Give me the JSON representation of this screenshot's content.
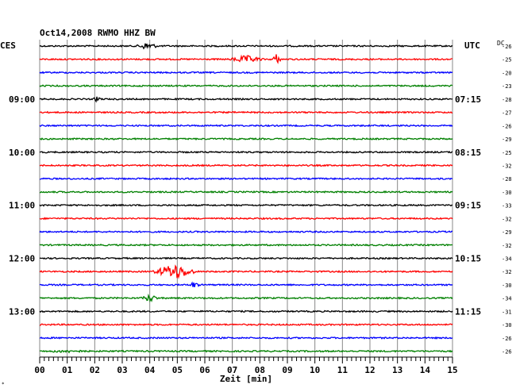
{
  "chart_data": {
    "type": "line",
    "title": "Oct14,2008  RWMO HHZ BW",
    "xlabel": "Zeit [min]",
    "xlim": [
      0,
      15
    ],
    "x_ticks": [
      "00",
      "01",
      "02",
      "03",
      "04",
      "05",
      "06",
      "07",
      "08",
      "09",
      "10",
      "11",
      "12",
      "13",
      "14",
      "15"
    ],
    "left_axis_label": "CES",
    "right_axis_label": "UTC",
    "dc_label": "DC",
    "left_hour_labels": [
      {
        "row": 4,
        "text": "09:00"
      },
      {
        "row": 8,
        "text": "10:00"
      },
      {
        "row": 12,
        "text": "11:00"
      },
      {
        "row": 16,
        "text": "12:00"
      },
      {
        "row": 20,
        "text": "13:00"
      }
    ],
    "right_hour_labels": [
      {
        "row": 4,
        "text": "07:15"
      },
      {
        "row": 8,
        "text": "08:15"
      },
      {
        "row": 12,
        "text": "09:15"
      },
      {
        "row": 16,
        "text": "10:15"
      },
      {
        "row": 20,
        "text": "11:15"
      }
    ],
    "traces": [
      {
        "color": "#000000",
        "dc": "-26"
      },
      {
        "color": "#ff0000",
        "dc": "-25"
      },
      {
        "color": "#0000ff",
        "dc": "-20"
      },
      {
        "color": "#008000",
        "dc": "-23"
      },
      {
        "color": "#000000",
        "dc": "-28"
      },
      {
        "color": "#ff0000",
        "dc": "-27"
      },
      {
        "color": "#0000ff",
        "dc": "-26"
      },
      {
        "color": "#008000",
        "dc": "-29"
      },
      {
        "color": "#000000",
        "dc": "-25"
      },
      {
        "color": "#ff0000",
        "dc": "-32"
      },
      {
        "color": "#0000ff",
        "dc": "-28"
      },
      {
        "color": "#008000",
        "dc": "-30"
      },
      {
        "color": "#000000",
        "dc": "-33"
      },
      {
        "color": "#ff0000",
        "dc": "-32"
      },
      {
        "color": "#0000ff",
        "dc": "-29"
      },
      {
        "color": "#008000",
        "dc": "-32"
      },
      {
        "color": "#000000",
        "dc": "-34"
      },
      {
        "color": "#ff0000",
        "dc": "-32"
      },
      {
        "color": "#0000ff",
        "dc": "-30"
      },
      {
        "color": "#008000",
        "dc": "-34"
      },
      {
        "color": "#000000",
        "dc": "-31"
      },
      {
        "color": "#ff0000",
        "dc": "-30"
      },
      {
        "color": "#0000ff",
        "dc": "-26"
      },
      {
        "color": "#008000",
        "dc": "-26"
      }
    ],
    "events": [
      {
        "row": 0,
        "x": 3.9,
        "width": 0.5,
        "amplitude": 5
      },
      {
        "row": 1,
        "x": 7.5,
        "width": 0.8,
        "amplitude": 5
      },
      {
        "row": 1,
        "x": 8.6,
        "width": 0.2,
        "amplitude": 7
      },
      {
        "row": 4,
        "x": 2.1,
        "width": 0.2,
        "amplitude": 4
      },
      {
        "row": 17,
        "x": 4.9,
        "width": 0.9,
        "amplitude": 10
      },
      {
        "row": 18,
        "x": 5.6,
        "width": 0.3,
        "amplitude": 4
      },
      {
        "row": 19,
        "x": 4.0,
        "width": 0.4,
        "amplitude": 5
      },
      {
        "row": 23,
        "x": 1.0,
        "width": 1.4,
        "amplitude": 2
      }
    ],
    "grid": true
  }
}
